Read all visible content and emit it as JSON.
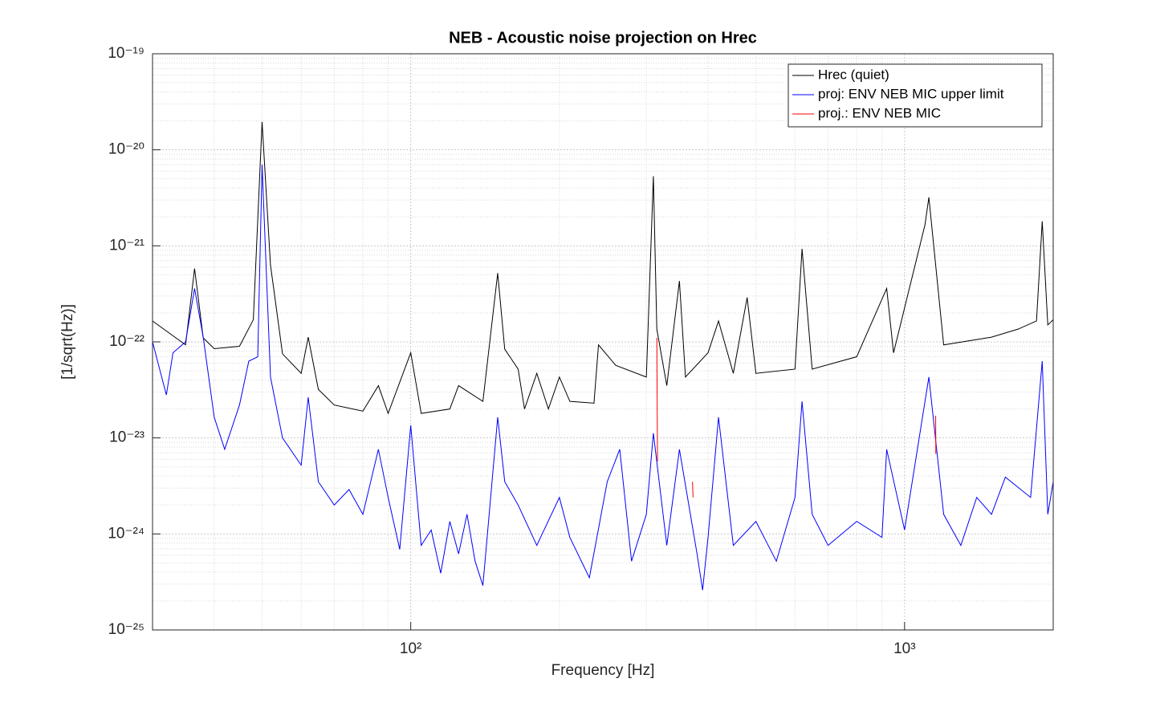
{
  "chart_data": {
    "type": "line",
    "title": "NEB - Acoustic noise projection on Hrec",
    "xlabel": "Frequency [Hz]",
    "ylabel": "[1/sqrt(Hz)]",
    "xscale": "log",
    "yscale": "log",
    "grid": true,
    "minor_grid": true,
    "legend": "northeast",
    "xlim": [
      30,
      2000
    ],
    "ylim": [
      1e-25,
      1e-19
    ],
    "xticks": [
      {
        "value": 100,
        "label": "10²"
      },
      {
        "value": 1000,
        "label": "10³"
      }
    ],
    "yticks": [
      {
        "value": 1e-25,
        "label": "10⁻²⁵"
      },
      {
        "value": 1e-24,
        "label": "10⁻²⁴"
      },
      {
        "value": 1e-23,
        "label": "10⁻²³"
      },
      {
        "value": 1e-22,
        "label": "10⁻²²"
      },
      {
        "value": 1e-21,
        "label": "10⁻²¹"
      },
      {
        "value": 1e-20,
        "label": "10⁻²⁰"
      },
      {
        "value": 1e-19,
        "label": "10⁻¹⁹"
      }
    ],
    "series": [
      {
        "name": "Hrec (quiet)",
        "color": "#000000",
        "x": [
          30,
          35,
          36.5,
          38,
          40,
          45,
          48,
          50,
          52,
          55,
          60,
          62,
          65,
          70,
          80,
          86,
          90,
          100,
          105,
          120,
          125,
          140,
          150,
          155,
          165,
          170,
          180,
          190,
          200,
          210,
          235,
          240,
          260,
          300,
          310,
          315,
          330,
          350,
          360,
          400,
          420,
          450,
          480,
          500,
          600,
          620,
          650,
          800,
          920,
          950,
          1100,
          1120,
          1200,
          1500,
          1700,
          1850,
          1900,
          1950,
          2000
        ],
        "values": [
          1.65e-22,
          9.3e-23,
          5.8e-22,
          1.1e-22,
          8.5e-23,
          9e-23,
          1.7e-22,
          1.95e-20,
          6.3e-22,
          7.5e-23,
          4.7e-23,
          1.12e-22,
          3.2e-23,
          2.2e-23,
          1.9e-23,
          3.5e-23,
          1.8e-23,
          7.7e-23,
          1.8e-23,
          2e-23,
          3.5e-23,
          2.4e-23,
          5.2e-22,
          8.4e-23,
          5.2e-23,
          2e-23,
          4.7e-23,
          2e-23,
          4.3e-23,
          2.4e-23,
          2.3e-23,
          9.3e-23,
          5.7e-23,
          4.3e-23,
          5.3e-21,
          1.36e-22,
          3.5e-23,
          4.3e-22,
          4.3e-23,
          7.7e-23,
          1.65e-22,
          4.7e-23,
          2.9e-22,
          4.7e-23,
          5.2e-23,
          9.3e-22,
          5.2e-23,
          7e-23,
          3.6e-22,
          7.7e-23,
          1.66e-21,
          3.2e-21,
          9.3e-23,
          1.12e-22,
          1.36e-22,
          1.65e-22,
          1.8e-21,
          1.5e-22,
          1.7e-22
        ]
      },
      {
        "name": "proj: ENV NEB MIC upper limit",
        "color": "#0000ff",
        "x": [
          30,
          32,
          33,
          35,
          36.5,
          38,
          40,
          42,
          45,
          47,
          49,
          50,
          52,
          55,
          60,
          62,
          65,
          70,
          75,
          80,
          86,
          90,
          95,
          100,
          105,
          110,
          115,
          120,
          125,
          130,
          135,
          140,
          150,
          155,
          165,
          180,
          200,
          210,
          230,
          250,
          265,
          280,
          300,
          310,
          330,
          350,
          380,
          390,
          400,
          420,
          450,
          500,
          550,
          600,
          620,
          650,
          700,
          800,
          900,
          920,
          1000,
          1120,
          1200,
          1300,
          1400,
          1500,
          1600,
          1800,
          1900,
          1950,
          2000
        ],
        "values": [
          1e-22,
          2.8e-23,
          7.7e-23,
          1e-22,
          3.6e-22,
          1.12e-22,
          1.64e-23,
          7.6e-24,
          2.2e-23,
          6.3e-23,
          7e-23,
          7e-21,
          4.3e-23,
          1e-23,
          5.2e-24,
          2.65e-23,
          3.5e-24,
          2e-24,
          2.9e-24,
          1.6e-24,
          7.6e-24,
          2.4e-24,
          6.9e-25,
          1.35e-23,
          7.6e-25,
          1.1e-24,
          3.9e-25,
          1.35e-24,
          6.2e-25,
          1.6e-24,
          5.2e-25,
          2.9e-25,
          1.64e-23,
          3.5e-24,
          2e-24,
          7.6e-25,
          2.4e-24,
          9.2e-25,
          3.5e-25,
          3.5e-24,
          7.6e-24,
          5.2e-25,
          1.6e-24,
          1.12e-23,
          7.6e-25,
          7.6e-24,
          6.2e-25,
          2.6e-25,
          9.2e-25,
          1.64e-23,
          7.6e-25,
          1.35e-24,
          5.2e-25,
          2.4e-24,
          2.4e-23,
          1.6e-24,
          7.6e-25,
          1.35e-24,
          9.2e-25,
          7.6e-24,
          1.1e-24,
          4.3e-23,
          1.6e-24,
          7.6e-25,
          2.4e-24,
          1.6e-24,
          3.9e-24,
          2.4e-24,
          6.3e-23,
          1.6e-24,
          3.5e-24
        ]
      },
      {
        "name": "proj.: ENV NEB MIC",
        "color": "#ff0000",
        "x": [
          315,
          316,
          317,
          372,
          373,
          374,
          1156,
          1157
        ],
        "values": [
          1.1e-22,
          5.7e-24,
          null,
          3.5e-24,
          2.4e-24,
          null,
          1.7e-23,
          6.8e-24
        ]
      }
    ]
  }
}
